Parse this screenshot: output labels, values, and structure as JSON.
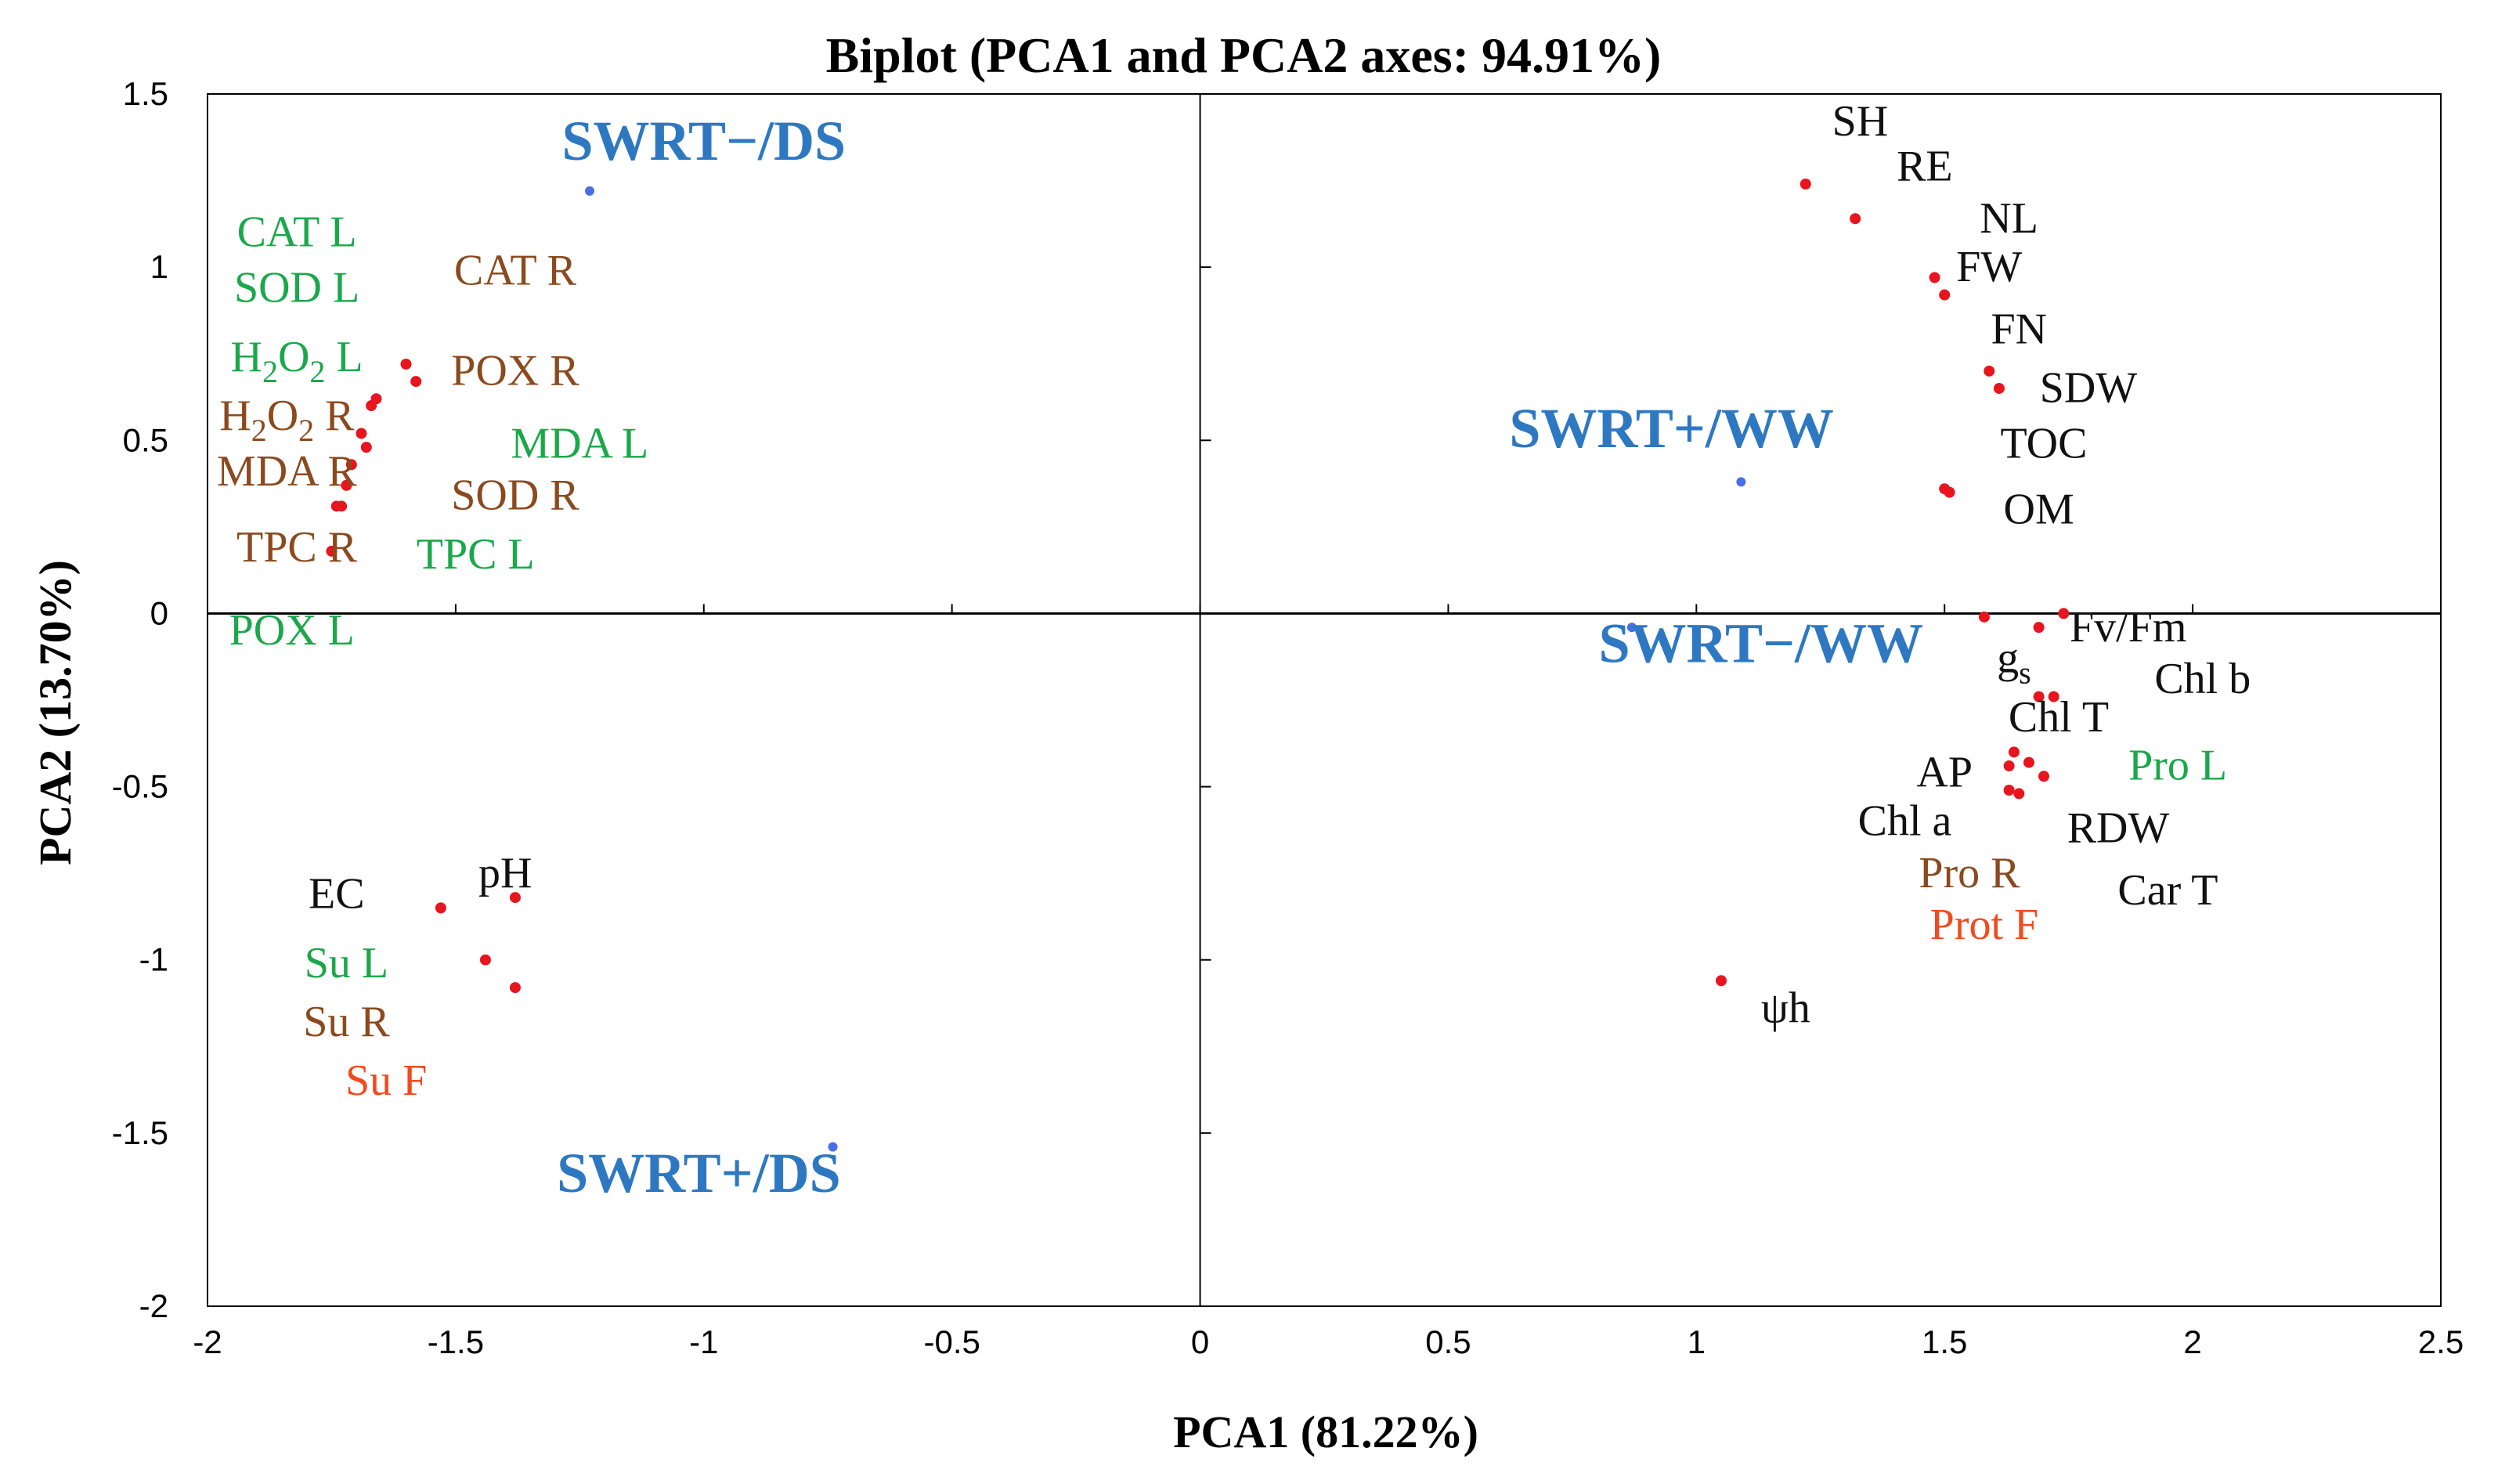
{
  "chart_data": {
    "type": "scatter",
    "title": "Biplot (PCA1 and PCA2 axes: 94.91%)",
    "xlabel": "PCA1 (81.22%)",
    "ylabel": "PCA2 (13.70%)",
    "xlim": [
      -2,
      2.5
    ],
    "ylim": [
      -2,
      1.5
    ],
    "xticks": [
      "-2",
      "-1.5",
      "-1",
      "-0.5",
      "0",
      "0.5",
      "1",
      "1.5",
      "2",
      "2.5"
    ],
    "yticks": [
      "1.5",
      "1",
      "0.5",
      "0",
      "-0.5",
      "-1",
      "-1.5",
      "-2"
    ],
    "colors": {
      "point": "#e8141e",
      "observation_point": "#4a6ee8",
      "observation_label": "#2e78c2",
      "leaf": "#1aa84a",
      "root": "#8b4a1e",
      "fruit": "#f24a1e",
      "soil": "#111111",
      "axis": "#000000"
    },
    "series": [
      {
        "name": "variables",
        "color": "#e8141e",
        "points": [
          {
            "x": 1.22,
            "y": 1.24
          },
          {
            "x": 1.32,
            "y": 1.14
          },
          {
            "x": 1.48,
            "y": 0.97
          },
          {
            "x": 1.5,
            "y": 0.92
          },
          {
            "x": 1.59,
            "y": 0.7
          },
          {
            "x": 1.61,
            "y": 0.65
          },
          {
            "x": 1.5,
            "y": 0.36
          },
          {
            "x": 1.51,
            "y": 0.35
          },
          {
            "x": -1.6,
            "y": 0.72
          },
          {
            "x": -1.58,
            "y": 0.67
          },
          {
            "x": -1.66,
            "y": 0.62
          },
          {
            "x": -1.67,
            "y": 0.6
          },
          {
            "x": -1.69,
            "y": 0.52
          },
          {
            "x": -1.68,
            "y": 0.48
          },
          {
            "x": -1.71,
            "y": 0.43
          },
          {
            "x": -1.72,
            "y": 0.37
          },
          {
            "x": -1.73,
            "y": 0.31
          },
          {
            "x": -1.74,
            "y": 0.31
          },
          {
            "x": -1.75,
            "y": 0.18
          },
          {
            "x": 1.58,
            "y": -0.01
          },
          {
            "x": 1.69,
            "y": -0.04
          },
          {
            "x": 1.74,
            "y": 0.0
          },
          {
            "x": 1.69,
            "y": -0.24
          },
          {
            "x": 1.72,
            "y": -0.24
          },
          {
            "x": 1.64,
            "y": -0.4
          },
          {
            "x": 1.67,
            "y": -0.43
          },
          {
            "x": 1.63,
            "y": -0.44
          },
          {
            "x": 1.7,
            "y": -0.47
          },
          {
            "x": 1.63,
            "y": -0.51
          },
          {
            "x": 1.65,
            "y": -0.52
          },
          {
            "x": -1.53,
            "y": -0.85
          },
          {
            "x": -1.38,
            "y": -0.82
          },
          {
            "x": -1.44,
            "y": -1.0
          },
          {
            "x": -1.38,
            "y": -1.08
          },
          {
            "x": 1.05,
            "y": -1.06
          }
        ]
      },
      {
        "name": "observations",
        "color": "#4a6ee8",
        "points": [
          {
            "x": -1.23,
            "y": 1.22
          },
          {
            "x": 1.09,
            "y": 0.38
          },
          {
            "x": 0.87,
            "y": -0.04
          },
          {
            "x": -0.74,
            "y": -1.54
          }
        ]
      }
    ],
    "variable_labels": [
      {
        "text": "SH",
        "x": 1.33,
        "y": 1.38,
        "group": "soil"
      },
      {
        "text": "RE",
        "x": 1.46,
        "y": 1.25,
        "group": "soil"
      },
      {
        "text": "NL",
        "x": 1.63,
        "y": 1.1,
        "group": "soil"
      },
      {
        "text": "FW",
        "x": 1.59,
        "y": 0.96,
        "group": "soil"
      },
      {
        "text": "FN",
        "x": 1.65,
        "y": 0.78,
        "group": "soil"
      },
      {
        "text": "SDW",
        "x": 1.79,
        "y": 0.61,
        "group": "soil"
      },
      {
        "text": "TOC",
        "x": 1.7,
        "y": 0.45,
        "group": "soil"
      },
      {
        "text": "OM",
        "x": 1.69,
        "y": 0.26,
        "group": "soil"
      },
      {
        "text": "CAT L",
        "x": -1.82,
        "y": 1.06,
        "group": "leaf"
      },
      {
        "text": "SOD L",
        "x": -1.82,
        "y": 0.9,
        "group": "leaf"
      },
      {
        "text": "CAT R",
        "x": -1.38,
        "y": 0.95,
        "group": "root"
      },
      {
        "text": "POX R",
        "x": -1.38,
        "y": 0.66,
        "group": "root"
      },
      {
        "text": "MDA L",
        "x": -1.25,
        "y": 0.45,
        "group": "leaf"
      },
      {
        "text": "SOD R",
        "x": -1.38,
        "y": 0.3,
        "group": "root"
      },
      {
        "text": "TPC L",
        "x": -1.46,
        "y": 0.13,
        "group": "leaf"
      },
      {
        "text": "MDA R",
        "x": -1.84,
        "y": 0.37,
        "group": "root"
      },
      {
        "text": "TPC R",
        "x": -1.82,
        "y": 0.15,
        "group": "root"
      },
      {
        "text": "POX L",
        "x": -1.83,
        "y": -0.09,
        "group": "leaf"
      },
      {
        "text": "Fv/Fm",
        "x": 1.87,
        "y": -0.08,
        "group": "soil"
      },
      {
        "text": "Chl b",
        "x": 2.02,
        "y": -0.23,
        "group": "soil"
      },
      {
        "text": "Chl T",
        "x": 1.73,
        "y": -0.34,
        "group": "soil"
      },
      {
        "text": "Pro L",
        "x": 1.97,
        "y": -0.48,
        "group": "leaf"
      },
      {
        "text": "AP",
        "x": 1.5,
        "y": -0.5,
        "group": "soil"
      },
      {
        "text": "Chl a",
        "x": 1.42,
        "y": -0.64,
        "group": "soil"
      },
      {
        "text": "RDW",
        "x": 1.85,
        "y": -0.66,
        "group": "soil"
      },
      {
        "text": "Pro R",
        "x": 1.55,
        "y": -0.79,
        "group": "root"
      },
      {
        "text": "Car T",
        "x": 1.95,
        "y": -0.84,
        "group": "soil"
      },
      {
        "text": "Prot F",
        "x": 1.58,
        "y": -0.94,
        "group": "fruit"
      },
      {
        "text": "ψh",
        "x": 1.18,
        "y": -1.18,
        "group": "soil"
      },
      {
        "text": "EC",
        "x": -1.74,
        "y": -0.85,
        "group": "soil"
      },
      {
        "text": "pH",
        "x": -1.4,
        "y": -0.79,
        "group": "soil"
      },
      {
        "text": "Su L",
        "x": -1.72,
        "y": -1.05,
        "group": "leaf"
      },
      {
        "text": "Su R",
        "x": -1.72,
        "y": -1.22,
        "group": "root"
      },
      {
        "text": "Su F",
        "x": -1.64,
        "y": -1.39,
        "group": "fruit"
      }
    ],
    "subscript_labels": [
      {
        "base": "H",
        "sub": "2",
        "tail": "O",
        "sub2": "2",
        "suffix": " L",
        "x": -1.82,
        "y": 0.7,
        "group": "leaf"
      },
      {
        "base": "H",
        "sub": "2",
        "tail": "O",
        "sub2": "2",
        "suffix": " R",
        "x": -1.84,
        "y": 0.53,
        "group": "root"
      },
      {
        "base": "g",
        "sub": "s",
        "tail": "",
        "sub2": "",
        "suffix": "",
        "x": 1.64,
        "y": -0.17,
        "group": "soil"
      }
    ],
    "observation_labels": [
      {
        "text": "SWRT−/DS",
        "x": -1.0,
        "y": 1.31
      },
      {
        "text": "SWRT+/WW",
        "x": 0.95,
        "y": 0.48
      },
      {
        "text": "SWRT−/WW",
        "x": 1.13,
        "y": -0.14
      },
      {
        "text": "SWRT+/DS",
        "x": -1.01,
        "y": -1.67
      }
    ]
  }
}
